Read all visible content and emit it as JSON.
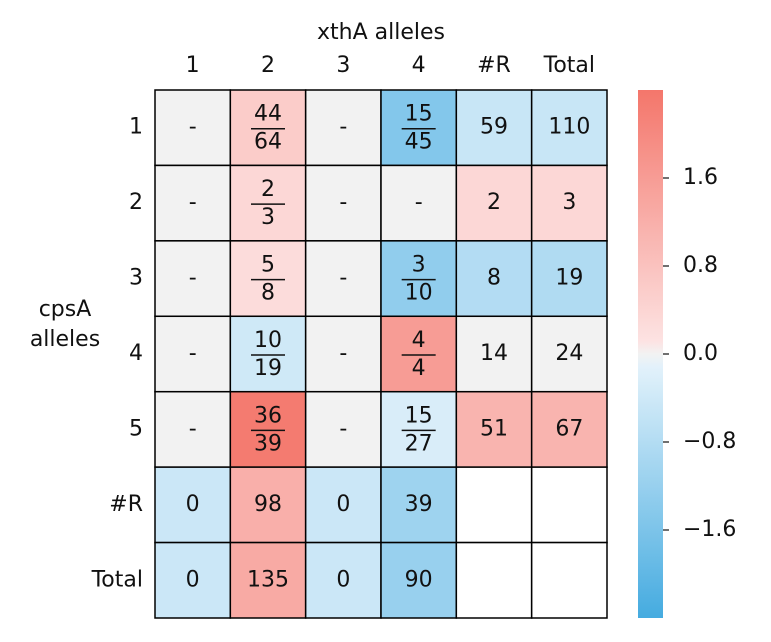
{
  "chart_data": {
    "type": "heatmap",
    "xlabel": "xthA alleles",
    "ylabel": "cpsA alleles",
    "columns": [
      "1",
      "2",
      "3",
      "4",
      "#R",
      "Total"
    ],
    "rows": [
      "1",
      "2",
      "3",
      "4",
      "5",
      "#R",
      "Total"
    ],
    "values": [
      [
        null,
        0.6,
        null,
        -1.5,
        -0.5,
        -0.5
      ],
      [
        null,
        0.35,
        null,
        null,
        0.35,
        0.35
      ],
      [
        null,
        0.25,
        null,
        -1.3,
        -0.8,
        -0.85
      ],
      [
        null,
        -0.4,
        null,
        1.6,
        0,
        0
      ],
      [
        null,
        2.3,
        null,
        -0.25,
        1.1,
        1.1
      ],
      [
        -0.45,
        1.2,
        -0.45,
        -1.1,
        null,
        null
      ],
      [
        -0.45,
        1.3,
        -0.45,
        -1.2,
        null,
        null
      ]
    ],
    "value_labels": [
      [
        "-",
        {
          "numerator": "44",
          "denominator": "64"
        },
        "-",
        {
          "numerator": "15",
          "denominator": "45"
        },
        "59",
        "110"
      ],
      [
        "-",
        {
          "numerator": "2",
          "denominator": "3"
        },
        "-",
        "-",
        "2",
        "3"
      ],
      [
        "-",
        {
          "numerator": "5",
          "denominator": "8"
        },
        "-",
        {
          "numerator": "3",
          "denominator": "10"
        },
        "8",
        "19"
      ],
      [
        "-",
        {
          "numerator": "10",
          "denominator": "19"
        },
        "-",
        {
          "numerator": "4",
          "denominator": "4"
        },
        "14",
        "24"
      ],
      [
        "-",
        {
          "numerator": "36",
          "denominator": "39"
        },
        "-",
        {
          "numerator": "15",
          "denominator": "27"
        },
        "51",
        "67"
      ],
      [
        "0",
        "98",
        "0",
        "39",
        null,
        null
      ],
      [
        "0",
        "135",
        "0",
        "90",
        null,
        null
      ]
    ],
    "clim": [
      -2.4,
      2.4
    ],
    "cticks": [
      1.6,
      0.8,
      {
        "value": 0,
        "label": "0.0"
      },
      {
        "value": -0.8,
        "label": "−0.8"
      },
      {
        "value": -1.6,
        "label": "−1.6"
      }
    ],
    "colors": {
      "negative": "#45abe0",
      "positive": "#f4766b",
      "zero": "#f2f2f2",
      "empty": "#ffffff"
    }
  }
}
